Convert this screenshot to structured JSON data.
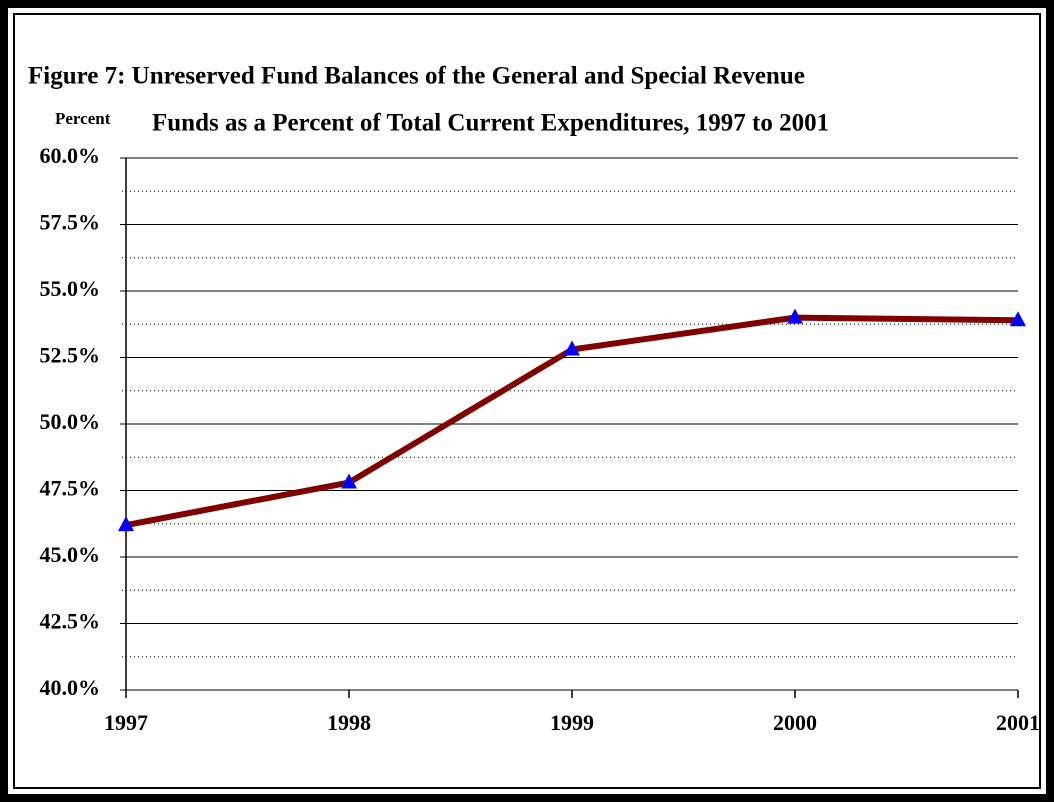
{
  "chart_data": {
    "type": "line",
    "title": [
      "Figure 7:  Unreserved Fund Balances of the General and Special Revenue",
      "Funds as a Percent of Total Current Expenditures, 1997 to 2001"
    ],
    "ylabel": "Percent",
    "categories": [
      "1997",
      "1998",
      "1999",
      "2000",
      "2001"
    ],
    "series": [
      {
        "color": "#800000",
        "marker_color": "#0000ff",
        "values": [
          46.2,
          47.8,
          52.8,
          54.0,
          53.9
        ]
      }
    ],
    "ylim": [
      40,
      60
    ],
    "yticks": [
      {
        "value": 40,
        "label": "40.0%"
      },
      {
        "value": 42.5,
        "label": "42.5%"
      },
      {
        "value": 45,
        "label": "45.0%"
      },
      {
        "value": 47.5,
        "label": "47.5%"
      },
      {
        "value": 50,
        "label": "50.0%"
      },
      {
        "value": 52.5,
        "label": "52.5%"
      },
      {
        "value": 55,
        "label": "55.0%"
      },
      {
        "value": 57.5,
        "label": "57.5%"
      },
      {
        "value": 60,
        "label": "60.0%"
      }
    ],
    "grid": true,
    "minor_grid": true
  }
}
